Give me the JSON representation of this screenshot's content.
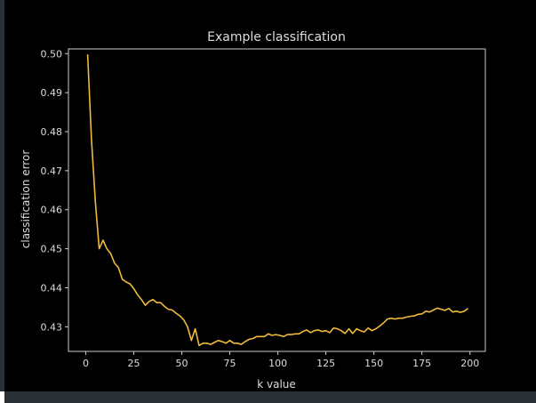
{
  "chart_data": {
    "type": "line",
    "title": "Example classification",
    "xlabel": "k value",
    "ylabel": "classification error",
    "xlim": [
      -9,
      208
    ],
    "ylim": [
      0.4237,
      0.5012
    ],
    "xticks": [
      0,
      25,
      50,
      75,
      100,
      125,
      150,
      175,
      200
    ],
    "yticks": [
      0.43,
      0.44,
      0.45,
      0.46,
      0.47,
      0.48,
      0.49,
      0.5
    ],
    "ytick_labels": [
      "0.43",
      "0.44",
      "0.45",
      "0.46",
      "0.47",
      "0.48",
      "0.49",
      "0.50"
    ],
    "grid": false,
    "background": "#000000",
    "axes_color": "#cccccc",
    "text_color": "#dddddd",
    "series": [
      {
        "color": "#f0b93a",
        "x": [
          1,
          3,
          5,
          7,
          9,
          11,
          13,
          15,
          17,
          19,
          21,
          23,
          25,
          27,
          29,
          31,
          33,
          35,
          37,
          39,
          41,
          43,
          45,
          47,
          49,
          51,
          53,
          55,
          57,
          59,
          61,
          63,
          65,
          67,
          69,
          71,
          73,
          75,
          77,
          79,
          81,
          83,
          85,
          87,
          89,
          91,
          93,
          95,
          97,
          99,
          101,
          103,
          105,
          107,
          109,
          111,
          113,
          115,
          117,
          119,
          121,
          123,
          125,
          127,
          129,
          131,
          133,
          135,
          137,
          139,
          141,
          143,
          145,
          147,
          149,
          151,
          153,
          155,
          157,
          159,
          161,
          163,
          165,
          167,
          169,
          171,
          173,
          175,
          177,
          179,
          181,
          183,
          185,
          187,
          189,
          191,
          193,
          195,
          197,
          199
        ],
        "y": [
          0.4998,
          0.478,
          0.462,
          0.45,
          0.4522,
          0.45,
          0.4488,
          0.4463,
          0.4452,
          0.4422,
          0.4415,
          0.441,
          0.4398,
          0.4382,
          0.437,
          0.4355,
          0.4365,
          0.437,
          0.4362,
          0.4362,
          0.4352,
          0.4345,
          0.4343,
          0.4335,
          0.4328,
          0.4318,
          0.43,
          0.4265,
          0.4295,
          0.4252,
          0.4258,
          0.4258,
          0.4255,
          0.426,
          0.4265,
          0.4262,
          0.4258,
          0.4265,
          0.4258,
          0.4258,
          0.4255,
          0.4262,
          0.4268,
          0.427,
          0.4275,
          0.4275,
          0.4275,
          0.4282,
          0.4278,
          0.428,
          0.4278,
          0.4275,
          0.428,
          0.428,
          0.4282,
          0.4282,
          0.4288,
          0.4292,
          0.4285,
          0.429,
          0.4292,
          0.4288,
          0.429,
          0.4285,
          0.4297,
          0.4295,
          0.429,
          0.4283,
          0.4295,
          0.4283,
          0.4295,
          0.429,
          0.4287,
          0.4297,
          0.429,
          0.4295,
          0.4302,
          0.431,
          0.432,
          0.4322,
          0.432,
          0.4322,
          0.4322,
          0.4325,
          0.4327,
          0.4328,
          0.4332,
          0.4333,
          0.434,
          0.4338,
          0.4343,
          0.4348,
          0.4345,
          0.4342,
          0.4347,
          0.4338,
          0.434,
          0.4337,
          0.434,
          0.4347
        ]
      }
    ]
  }
}
